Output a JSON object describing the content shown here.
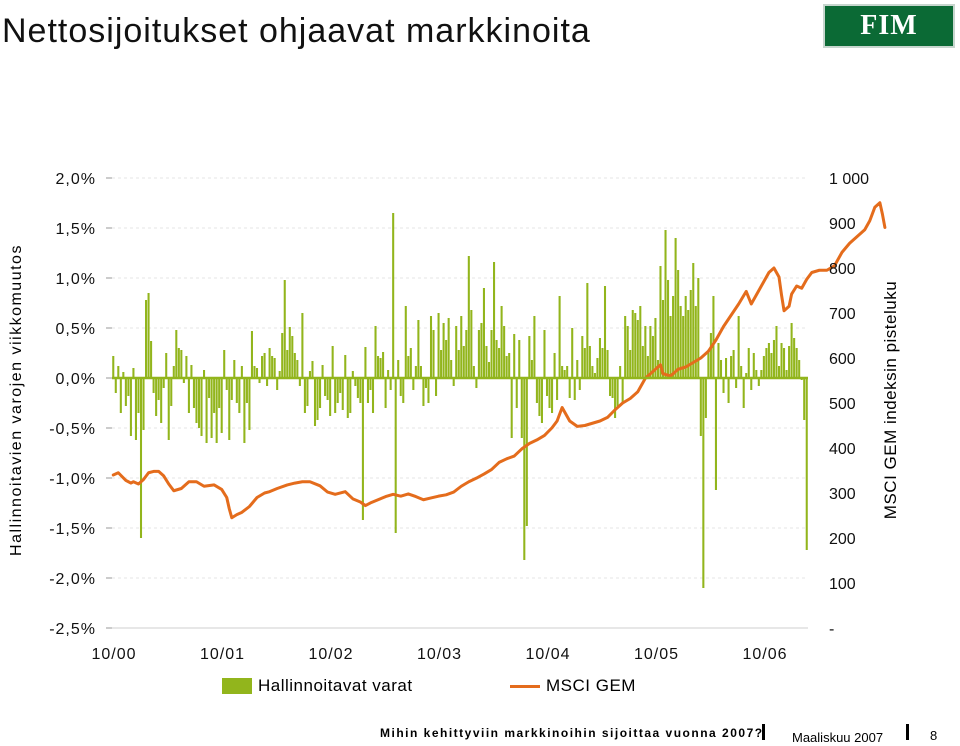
{
  "header": {
    "title": "Nettosijoitukset ohjaavat markkinoita",
    "logo_text": "FIM"
  },
  "footer": {
    "text": "Mihin kehittyviin markkinoihin sijoittaa vuonna 2007?",
    "date": "Maaliskuu 2007",
    "page": "8"
  },
  "colors": {
    "bars": "#92b51c",
    "line": "#e46c1c",
    "logo_bg": "#0b6a35"
  },
  "chart_data": {
    "type": "bar",
    "title": "",
    "ylabel": "Hallinnoitavien varojen viikkomuutos",
    "y2label": "MSCI GEM indeksin pisteluku",
    "ylim": [
      -2.5,
      2.0
    ],
    "y2lim": [
      0,
      1000
    ],
    "y_ticks": [
      "2,0%",
      "1,5%",
      "1,0%",
      "0,5%",
      "0,0%",
      "-0,5%",
      "-1,0%",
      "-1,5%",
      "-2,0%",
      "-2,5%"
    ],
    "y2_ticks": [
      "1 000",
      "900",
      "800",
      "700",
      "600",
      "500",
      "400",
      "300",
      "200",
      "100",
      "-"
    ],
    "x_ticks": [
      "10/00",
      "10/01",
      "10/02",
      "10/03",
      "10/04",
      "10/05",
      "10/06"
    ],
    "grid": false,
    "legend_position": "bottom",
    "series": [
      {
        "name": "Hallinnoitavat varat",
        "kind": "bar",
        "axis": "left",
        "values": [
          0.22,
          -0.15,
          0.12,
          -0.35,
          0.06,
          -0.28,
          -0.18,
          -0.58,
          0.1,
          -0.62,
          -0.35,
          -1.6,
          -0.52,
          0.78,
          0.85,
          0.37,
          -0.15,
          -0.38,
          -0.22,
          -0.45,
          -0.1,
          0.25,
          -0.62,
          -0.28,
          0.12,
          0.48,
          0.3,
          0.28,
          -0.05,
          0.22,
          -0.35,
          0.13,
          -0.3,
          -0.45,
          -0.5,
          -0.58,
          0.08,
          -0.65,
          -0.2,
          -0.6,
          -0.35,
          -0.65,
          -0.3,
          -0.55,
          0.28,
          -0.12,
          -0.62,
          -0.22,
          0.18,
          -0.25,
          -0.35,
          0.12,
          -0.65,
          -0.25,
          -0.52,
          0.47,
          0.12,
          0.1,
          -0.05,
          0.22,
          0.25,
          -0.08,
          0.3,
          0.22,
          0.2,
          -0.12,
          0.07,
          0.45,
          0.98,
          0.28,
          0.51,
          0.42,
          0.25,
          0.18,
          -0.08,
          0.65,
          -0.35,
          -0.28,
          0.07,
          0.17,
          -0.48,
          -0.42,
          -0.3,
          0.13,
          -0.18,
          -0.22,
          -0.38,
          0.32,
          -0.35,
          -0.25,
          -0.15,
          -0.32,
          0.23,
          -0.4,
          -0.35,
          0.07,
          -0.08,
          -0.2,
          -0.25,
          -1.42,
          0.31,
          -0.25,
          -0.12,
          -0.35,
          0.52,
          0.22,
          0.2,
          0.26,
          -0.3,
          0.08,
          -0.12,
          1.65,
          -1.55,
          0.18,
          -0.18,
          -0.25,
          0.72,
          0.22,
          0.3,
          -0.12,
          0.12,
          0.58,
          0.12,
          -0.28,
          -0.1,
          -0.25,
          0.62,
          0.48,
          -0.18,
          0.65,
          0.28,
          0.55,
          0.38,
          0.6,
          0.18,
          -0.08,
          0.52,
          0.28,
          0.62,
          0.32,
          0.48,
          1.22,
          0.68,
          0.12,
          -0.1,
          0.48,
          0.55,
          0.9,
          0.32,
          0.16,
          0.48,
          1.16,
          0.38,
          0.3,
          0.72,
          0.52,
          0.22,
          0.25,
          -0.6,
          0.44,
          -0.3,
          0.38,
          -0.6,
          -1.82,
          -1.48,
          0.42,
          0.18,
          0.62,
          -0.25,
          -0.38,
          -0.45,
          0.48,
          -0.18,
          -0.3,
          -0.35,
          0.25,
          -0.22,
          0.82,
          0.12,
          0.08,
          0.12,
          -0.2,
          0.5,
          -0.22,
          0.18,
          -0.12,
          0.42,
          0.3,
          0.95,
          0.32,
          0.12,
          0.05,
          0.2,
          0.4,
          0.3,
          0.92,
          0.28,
          -0.18,
          -0.2,
          -0.4,
          -0.28,
          0.12,
          -0.25,
          0.62,
          0.52,
          0.28,
          0.68,
          0.65,
          0.58,
          0.72,
          0.32,
          0.52,
          0.22,
          0.52,
          0.42,
          0.6,
          0.18,
          1.12,
          0.78,
          1.48,
          0.98,
          0.62,
          0.82,
          1.4,
          1.08,
          0.72,
          0.62,
          0.82,
          0.68,
          0.88,
          1.15,
          0.72,
          1.0,
          -0.58,
          -2.1,
          -0.4,
          0.28,
          0.45,
          0.82,
          -1.12,
          0.35,
          0.18,
          -0.15,
          0.2,
          -0.25,
          0.22,
          0.28,
          -0.1,
          0.62,
          0.12,
          -0.3,
          0.05,
          0.3,
          -0.12,
          0.25,
          0.08,
          -0.08,
          0.08,
          0.22,
          0.3,
          0.35,
          0.25,
          0.38,
          0.52,
          0.12,
          0.35,
          0.3,
          0.08,
          0.32,
          0.55,
          0.4,
          0.3,
          0.18,
          -0.02,
          -0.42,
          -1.72
        ]
      },
      {
        "name": "MSCI GEM",
        "kind": "line",
        "axis": "right",
        "points": [
          [
            0,
            340
          ],
          [
            2,
            345
          ],
          [
            5,
            328
          ],
          [
            7,
            322
          ],
          [
            8,
            325
          ],
          [
            10,
            320
          ],
          [
            12,
            330
          ],
          [
            14,
            345
          ],
          [
            16,
            348
          ],
          [
            18,
            348
          ],
          [
            20,
            338
          ],
          [
            22,
            320
          ],
          [
            24,
            305
          ],
          [
            27,
            310
          ],
          [
            30,
            325
          ],
          [
            33,
            325
          ],
          [
            36,
            315
          ],
          [
            40,
            318
          ],
          [
            43,
            308
          ],
          [
            45,
            290
          ],
          [
            46,
            265
          ],
          [
            47,
            245
          ],
          [
            49,
            252
          ],
          [
            51,
            257
          ],
          [
            54,
            270
          ],
          [
            57,
            290
          ],
          [
            60,
            300
          ],
          [
            62,
            303
          ],
          [
            65,
            310
          ],
          [
            69,
            318
          ],
          [
            72,
            322
          ],
          [
            75,
            325
          ],
          [
            78,
            325
          ],
          [
            82,
            316
          ],
          [
            85,
            302
          ],
          [
            88,
            297
          ],
          [
            92,
            303
          ],
          [
            95,
            287
          ],
          [
            98,
            280
          ],
          [
            100,
            272
          ],
          [
            102,
            278
          ],
          [
            105,
            285
          ],
          [
            108,
            292
          ],
          [
            111,
            297
          ],
          [
            114,
            293
          ],
          [
            117,
            298
          ],
          [
            120,
            292
          ],
          [
            123,
            285
          ],
          [
            126,
            289
          ],
          [
            129,
            293
          ],
          [
            132,
            296
          ],
          [
            135,
            302
          ],
          [
            138,
            315
          ],
          [
            141,
            325
          ],
          [
            144,
            333
          ],
          [
            147,
            342
          ],
          [
            150,
            352
          ],
          [
            153,
            368
          ],
          [
            156,
            376
          ],
          [
            159,
            382
          ],
          [
            162,
            398
          ],
          [
            165,
            410
          ],
          [
            168,
            418
          ],
          [
            171,
            428
          ],
          [
            174,
            445
          ],
          [
            176,
            460
          ],
          [
            178,
            490
          ],
          [
            179,
            480
          ],
          [
            181,
            460
          ],
          [
            184,
            448
          ],
          [
            187,
            450
          ],
          [
            190,
            455
          ],
          [
            193,
            460
          ],
          [
            196,
            468
          ],
          [
            199,
            485
          ],
          [
            202,
            500
          ],
          [
            205,
            510
          ],
          [
            208,
            525
          ],
          [
            211,
            555
          ],
          [
            214,
            570
          ],
          [
            217,
            585
          ],
          [
            218,
            565
          ],
          [
            221,
            560
          ],
          [
            224,
            575
          ],
          [
            227,
            580
          ],
          [
            230,
            590
          ],
          [
            233,
            600
          ],
          [
            236,
            615
          ],
          [
            239,
            640
          ],
          [
            242,
            670
          ],
          [
            245,
            695
          ],
          [
            248,
            720
          ],
          [
            251,
            748
          ],
          [
            253,
            720
          ],
          [
            256,
            750
          ],
          [
            258,
            770
          ],
          [
            260,
            790
          ],
          [
            262,
            800
          ],
          [
            264,
            780
          ],
          [
            265,
            740
          ],
          [
            266,
            705
          ],
          [
            268,
            715
          ],
          [
            269,
            742
          ],
          [
            271,
            760
          ],
          [
            273,
            755
          ],
          [
            275,
            775
          ],
          [
            277,
            790
          ],
          [
            280,
            795
          ],
          [
            283,
            795
          ],
          [
            286,
            805
          ],
          [
            289,
            835
          ],
          [
            292,
            855
          ],
          [
            295,
            870
          ],
          [
            298,
            885
          ],
          [
            300,
            905
          ],
          [
            302,
            935
          ],
          [
            304,
            945
          ],
          [
            305,
            920
          ],
          [
            306,
            890
          ]
        ]
      }
    ]
  }
}
